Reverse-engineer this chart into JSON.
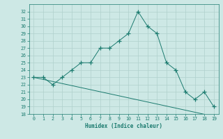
{
  "xlabel": "Humidex (Indice chaleur)",
  "x_values": [
    0,
    1,
    2,
    3,
    4,
    5,
    6,
    7,
    8,
    9,
    10,
    11,
    12,
    13,
    14,
    15,
    16,
    17,
    18,
    19
  ],
  "y_main": [
    23,
    23,
    22,
    23,
    24,
    25,
    25,
    27,
    27,
    28,
    29,
    32,
    30,
    29,
    25,
    24,
    21,
    20,
    21,
    19
  ],
  "y_linear": [
    23.0,
    22.72,
    22.44,
    22.16,
    21.88,
    21.6,
    21.32,
    21.04,
    20.76,
    20.48,
    20.2,
    19.92,
    19.64,
    19.36,
    19.08,
    18.8,
    18.52,
    18.24,
    17.96,
    17.68
  ],
  "line_color": "#1a7a6e",
  "bg_color": "#cde8e5",
  "grid_color": "#b0d0cc",
  "ylim": [
    18,
    33
  ],
  "xlim": [
    -0.5,
    19.5
  ],
  "yticks": [
    18,
    19,
    20,
    21,
    22,
    23,
    24,
    25,
    26,
    27,
    28,
    29,
    30,
    31,
    32
  ],
  "xticks": [
    0,
    1,
    2,
    3,
    4,
    5,
    6,
    7,
    8,
    9,
    10,
    11,
    12,
    13,
    14,
    15,
    16,
    17,
    18,
    19
  ]
}
